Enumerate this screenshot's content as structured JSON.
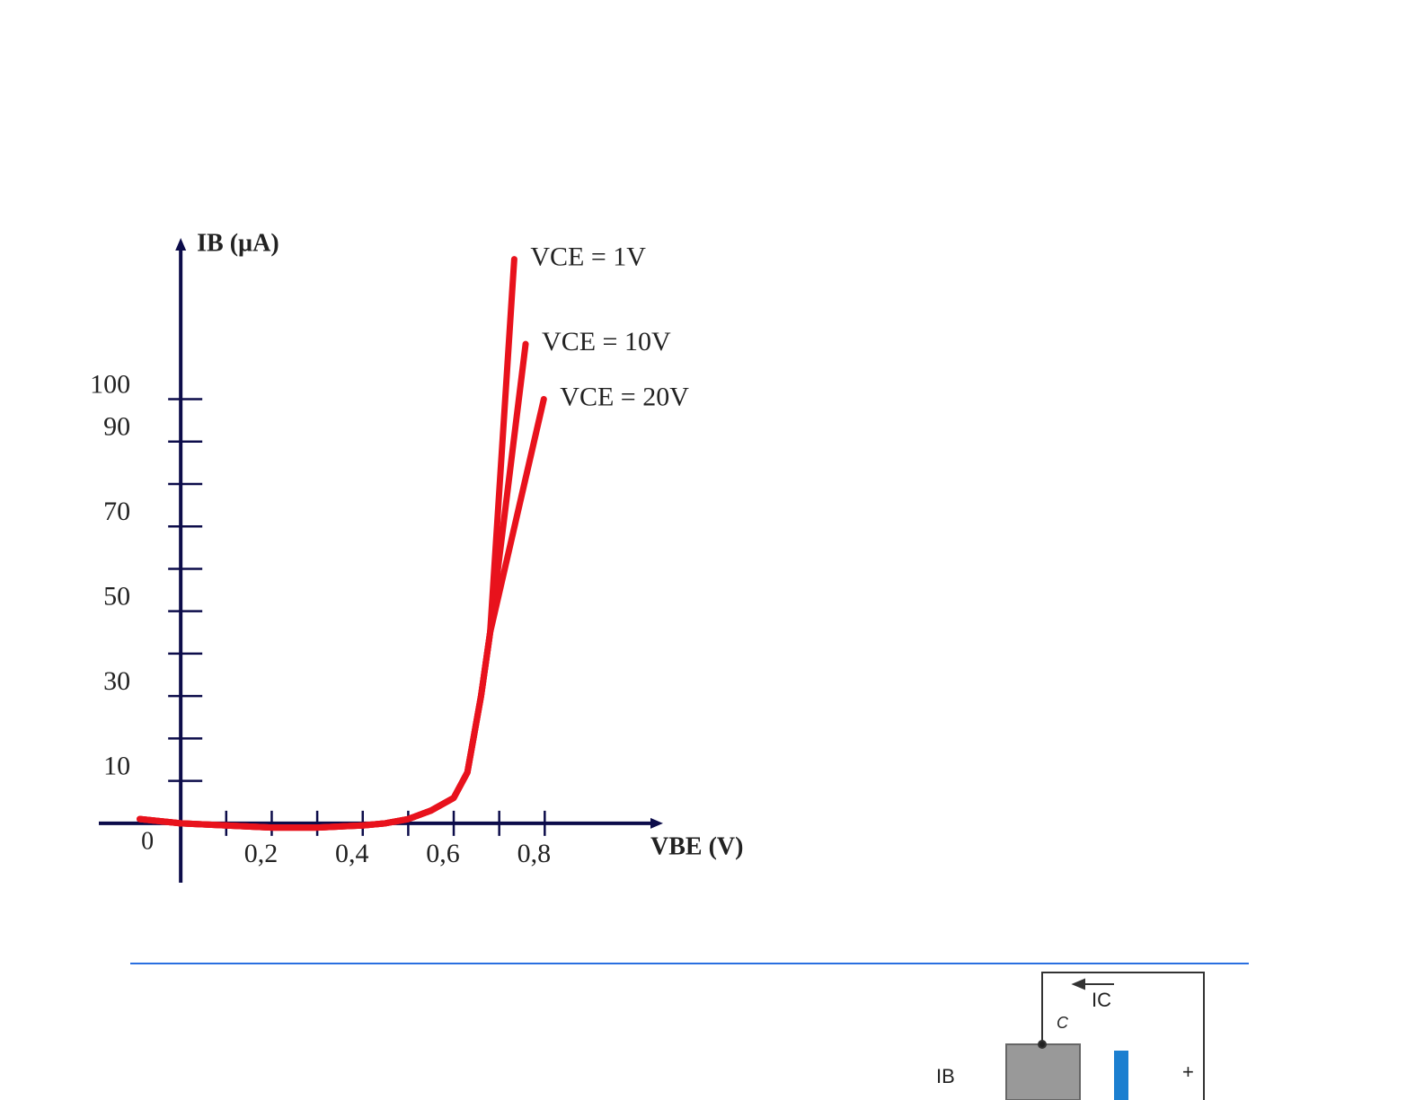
{
  "chart_data": {
    "type": "line",
    "ylabel": "IB (µA)",
    "xlabel": "VBE (V)",
    "origin_label": "0",
    "xlim": [
      -0.18,
      1.06
    ],
    "ylim": [
      -14,
      138
    ],
    "xticks": [
      {
        "value": 0.2,
        "label": "0,2"
      },
      {
        "value": 0.4,
        "label": "0,4"
      },
      {
        "value": 0.6,
        "label": "0,6"
      },
      {
        "value": 0.8,
        "label": "0,8"
      }
    ],
    "minor_xticks": [
      0.1,
      0.3,
      0.5,
      0.7
    ],
    "yticks": [
      10,
      30,
      50,
      70,
      90,
      100
    ],
    "minor_yticks": [
      20,
      40,
      60,
      80
    ],
    "axis_color": "#0c0c4a",
    "series": [
      {
        "name": "VCE = 1V",
        "color": "#e8121c",
        "x": [
          -0.09,
          0,
          0.1,
          0.2,
          0.3,
          0.4,
          0.45,
          0.5,
          0.55,
          0.6,
          0.63,
          0.66,
          0.68,
          0.733
        ],
        "values": [
          1,
          0,
          -0.5,
          -1,
          -1,
          -0.5,
          0,
          1,
          3,
          6,
          12,
          30,
          45,
          133
        ]
      },
      {
        "name": "VCE = 10V",
        "color": "#e8121c",
        "x": [
          -0.09,
          0,
          0.1,
          0.2,
          0.3,
          0.4,
          0.45,
          0.5,
          0.55,
          0.6,
          0.63,
          0.66,
          0.68,
          0.758
        ],
        "values": [
          1,
          0,
          -0.5,
          -1,
          -1,
          -0.5,
          0,
          1,
          3,
          6,
          12,
          30,
          45,
          113
        ]
      },
      {
        "name": "VCE = 20V",
        "color": "#e8121c",
        "x": [
          -0.09,
          0,
          0.1,
          0.2,
          0.3,
          0.4,
          0.45,
          0.5,
          0.55,
          0.6,
          0.63,
          0.66,
          0.68,
          0.798
        ],
        "values": [
          1,
          0,
          -0.5,
          -1,
          -1,
          -0.5,
          0,
          1,
          3,
          6,
          12,
          30,
          45,
          100
        ]
      }
    ]
  },
  "circuit": {
    "ic": "IC",
    "c": "C",
    "ib": "IB",
    "plus": "+"
  }
}
